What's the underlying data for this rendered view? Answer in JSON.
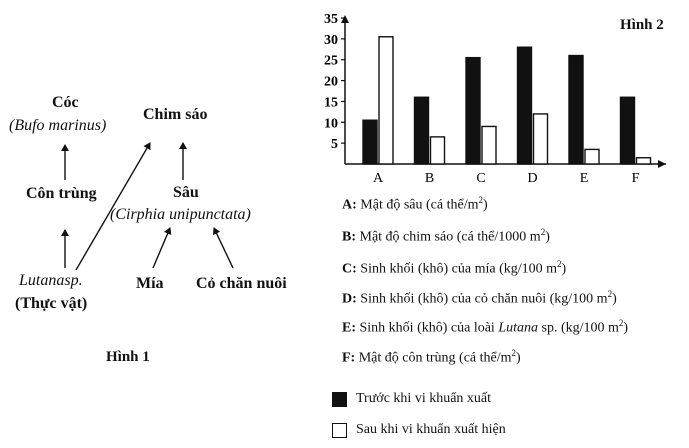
{
  "food_web": {
    "caption": "Hình 1",
    "nodes": {
      "coc": {
        "label": "Cóc",
        "sci": "(Bufo marinus)"
      },
      "chim_sao": {
        "label": "Chim sáo"
      },
      "con_trung": {
        "label": "Côn trùng"
      },
      "sau": {
        "label": "Sâu",
        "sci": "(Cirphia unipunctata)"
      },
      "lutana": {
        "label": "Lutanasp.",
        "sub": "(Thực vật)"
      },
      "mia": {
        "label": "Mía"
      },
      "co_chan_nuoi": {
        "label": "Cỏ chăn nuôi"
      }
    }
  },
  "chart_title": "Hình 2",
  "chart_data": {
    "type": "bar",
    "title": "Hình 2",
    "categories": [
      "A",
      "B",
      "C",
      "D",
      "E",
      "F"
    ],
    "ylim": [
      0,
      35
    ],
    "yticks": [
      5,
      10,
      15,
      20,
      25,
      30,
      35
    ],
    "series": [
      {
        "name": "Trước khi vi khuẩn xuất",
        "color": "#111111",
        "values": [
          10.5,
          16,
          25.5,
          28,
          26,
          16
        ]
      },
      {
        "name": "Sau khi vi khuẩn xuất hiện",
        "color": "#ffffff",
        "values": [
          30.5,
          6.5,
          9,
          12,
          3.5,
          1.5
        ]
      }
    ]
  },
  "descriptions": [
    {
      "key": "A:",
      "text": "Mật độ sâu (cá thể/m",
      "sup": "2",
      "tail": ")"
    },
    {
      "key": "B:",
      "text": "Mật độ chim sáo (cá thể/1000 m",
      "sup": "2",
      "tail": ")"
    },
    {
      "key": "C:",
      "text": "Sinh khối (khô) của mía (kg/100 m",
      "sup": "2",
      "tail": ")"
    },
    {
      "key": "D:",
      "text": "Sinh khối (khô) của cỏ chăn nuôi (kg/100 m",
      "sup": "2",
      "tail": ")"
    },
    {
      "key": "E:",
      "text": "Sinh khối (khô) của loài ",
      "ital": "Lutana",
      "text2": " sp. (kg/100 m",
      "sup": "2",
      "tail": ")"
    },
    {
      "key": "F:",
      "text": "Mật độ côn trùng (cá thể/m",
      "sup": "2",
      "tail": ")"
    }
  ]
}
